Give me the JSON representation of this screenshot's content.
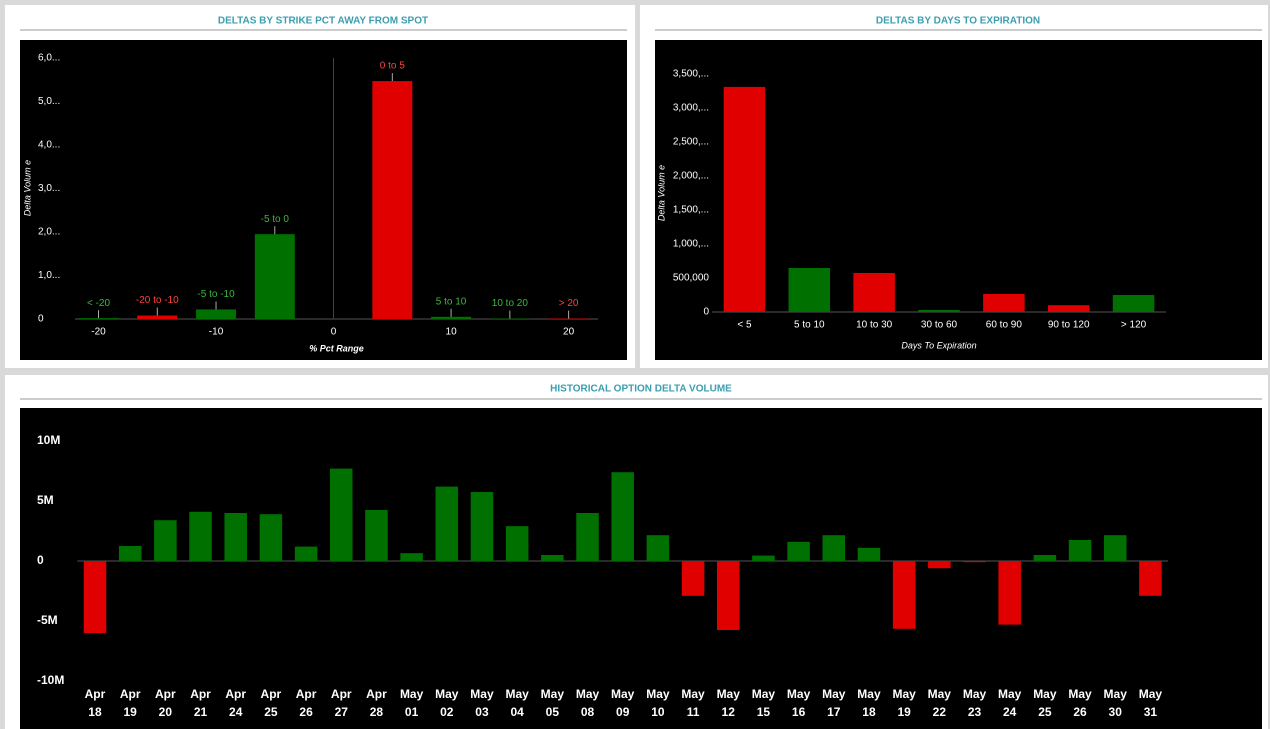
{
  "chart_data": [
    {
      "type": "bar",
      "title": "DELTAS BY STRIKE PCT AWAY FROM SPOT",
      "x": [
        -20,
        -15,
        -10,
        -5,
        5,
        10,
        15,
        20
      ],
      "value_labels": [
        "< -20",
        "-20 to -10",
        "-5 to -10",
        "-5 to 0",
        "0 to 5",
        "5 to 10",
        "10 to 20",
        "> 20"
      ],
      "values": [
        20000,
        80000,
        220000,
        1950000,
        5470000,
        50000,
        10000,
        10000
      ],
      "colors": [
        "#007000",
        "#e00000",
        "#007000",
        "#007000",
        "#e00000",
        "#007000",
        "#007000",
        "#e00000"
      ],
      "xlim": [
        -22,
        22.5
      ],
      "xticks": [
        -20,
        -10,
        0,
        10,
        20
      ],
      "x_reference_line": 0,
      "ylim": [
        0,
        6000000
      ],
      "yticks": [
        0,
        {
          "value": 1000000,
          "label": "1,0..."
        },
        {
          "value": 2000000,
          "label": "2,0..."
        },
        {
          "value": 3000000,
          "label": "3,0..."
        },
        {
          "value": 4000000,
          "label": "4,0..."
        },
        {
          "value": 5000000,
          "label": "5,0..."
        },
        {
          "value": 6000000,
          "label": "6,0..."
        }
      ],
      "x_label": "% Pct Range",
      "y_label": "Delta Volum e"
    },
    {
      "type": "bar",
      "title": "DELTAS BY DAYS TO EXPIRATION",
      "categories": [
        "< 5",
        "5 to 10",
        "10 to 30",
        "30 to 60",
        "60 to 90",
        "90 to 120",
        "> 120"
      ],
      "values": [
        3310000,
        647000,
        574000,
        30000,
        265000,
        100000,
        250000
      ],
      "colors": [
        "#e00000",
        "#007000",
        "#e00000",
        "#007000",
        "#e00000",
        "#e00000",
        "#007000"
      ],
      "ylim": [
        0,
        3500000
      ],
      "yticks": [
        0,
        {
          "value": 500000,
          "label": "500,000"
        },
        {
          "value": 1000000,
          "label": "1,000,..."
        },
        {
          "value": 1500000,
          "label": "1,500,..."
        },
        {
          "value": 2000000,
          "label": "2,000,..."
        },
        {
          "value": 2500000,
          "label": "2,500,..."
        },
        {
          "value": 3000000,
          "label": "3,000,..."
        },
        {
          "value": 3500000,
          "label": "3,500,..."
        }
      ],
      "x_label": "Days To Expiration",
      "y_label": "Delta Volum e"
    },
    {
      "type": "bar",
      "title": "HISTORICAL OPTION DELTA VOLUME",
      "categories": [
        "Apr 18",
        "Apr 19",
        "Apr 20",
        "Apr 21",
        "Apr 24",
        "Apr 25",
        "Apr 26",
        "Apr 27",
        "Apr 28",
        "May 01",
        "May 02",
        "May 03",
        "May 04",
        "May 05",
        "May 08",
        "May 09",
        "May 10",
        "May 11",
        "May 12",
        "May 15",
        "May 16",
        "May 17",
        "May 18",
        "May 19",
        "May 22",
        "May 23",
        "May 24",
        "May 25",
        "May 26",
        "May 30",
        "May 31"
      ],
      "values": [
        -6000000,
        1250000,
        3400000,
        4100000,
        4000000,
        3900000,
        1200000,
        7700000,
        4250000,
        650000,
        6200000,
        5750000,
        2900000,
        500000,
        4000000,
        7400000,
        2150000,
        -2900000,
        -5750000,
        450000,
        1600000,
        2150000,
        1100000,
        -5650000,
        -600000,
        -100000,
        -5300000,
        500000,
        1750000,
        2150000,
        -2900000
      ],
      "positive_color": "#007000",
      "negative_color": "#e00000",
      "ylim": [
        -10000000,
        10000000
      ],
      "yticks": [
        {
          "value": -10000000,
          "label": "-10M"
        },
        {
          "value": -5000000,
          "label": "-5M"
        },
        0,
        {
          "value": 5000000,
          "label": "5M"
        },
        {
          "value": 10000000,
          "label": "10M"
        }
      ]
    }
  ]
}
